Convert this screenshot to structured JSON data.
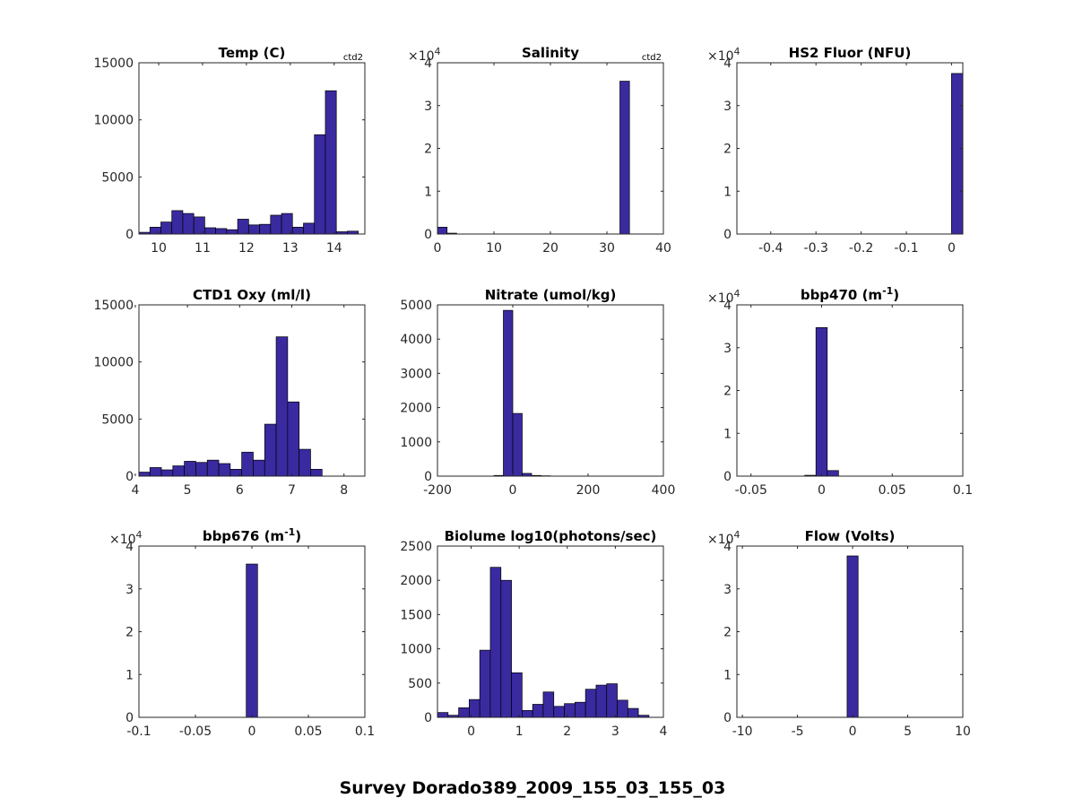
{
  "figure": {
    "suptitle": "Survey Dorado389_2009_155_03_155_03",
    "bar_color": "#3a2aa0"
  },
  "chart_data": [
    {
      "type": "bar",
      "title": "Temp (C)",
      "corner_label": "ctd2",
      "xlim": [
        9.55,
        14.7
      ],
      "ylim": [
        0,
        15000
      ],
      "xticks": [
        10,
        11,
        12,
        13,
        14
      ],
      "xtick_labels": [
        "10",
        "11",
        "12",
        "13",
        "14"
      ],
      "yticks": [
        0,
        5000,
        10000,
        15000
      ],
      "ytick_labels": [
        "0",
        "5000",
        "10000",
        "15000"
      ],
      "multiplier": null,
      "bin_edges": [
        9.55,
        9.8,
        10.05,
        10.3,
        10.55,
        10.8,
        11.05,
        11.3,
        11.55,
        11.8,
        12.05,
        12.3,
        12.55,
        12.8,
        13.05,
        13.3,
        13.55,
        13.8,
        14.05,
        14.3,
        14.55,
        14.7
      ],
      "values": [
        150,
        600,
        1050,
        2050,
        1800,
        1500,
        550,
        480,
        380,
        1300,
        800,
        850,
        1650,
        1800,
        600,
        950,
        8700,
        12550,
        200,
        250,
        0
      ]
    },
    {
      "type": "bar",
      "title": "Salinity",
      "corner_label": "ctd2",
      "xlim": [
        0,
        40
      ],
      "ylim": [
        0,
        4
      ],
      "xticks": [
        0,
        10,
        20,
        30,
        40
      ],
      "xtick_labels": [
        "0",
        "10",
        "20",
        "30",
        "40"
      ],
      "yticks": [
        0,
        1,
        2,
        3,
        4
      ],
      "ytick_labels": [
        "0",
        "1",
        "2",
        "3",
        "4"
      ],
      "multiplier": "×10",
      "multiplier_exp": "4",
      "bin_edges": [
        0,
        1.7,
        3.4,
        5.1,
        6.8,
        8.5,
        10.2,
        11.9,
        13.6,
        15.3,
        17.0,
        18.7,
        20.4,
        22.1,
        23.8,
        25.5,
        27.2,
        28.9,
        30.6,
        32.3,
        34.0
      ],
      "values": [
        0.16,
        0.02,
        0,
        0,
        0,
        0,
        0,
        0,
        0,
        0,
        0,
        0,
        0,
        0,
        0,
        0,
        0,
        0,
        0,
        3.57
      ]
    },
    {
      "type": "bar",
      "title": "HS2 Fluor (NFU)",
      "corner_label": "",
      "xlim": [
        -0.475,
        0.025
      ],
      "ylim": [
        0,
        4
      ],
      "xticks": [
        -0.4,
        -0.3,
        -0.2,
        -0.1,
        0
      ],
      "xtick_labels": [
        "-0.4",
        "-0.3",
        "-0.2",
        "-0.1",
        "0"
      ],
      "yticks": [
        0,
        1,
        2,
        3,
        4
      ],
      "ytick_labels": [
        "0",
        "1",
        "2",
        "3",
        "4"
      ],
      "multiplier": "×10",
      "multiplier_exp": "4",
      "bin_edges": [
        -0.475,
        -0.45,
        -0.425,
        -0.4,
        -0.375,
        -0.35,
        -0.325,
        -0.3,
        -0.275,
        -0.25,
        -0.225,
        -0.2,
        -0.175,
        -0.15,
        -0.125,
        -0.1,
        -0.075,
        -0.05,
        -0.025,
        0,
        0.025
      ],
      "values": [
        0,
        0,
        0,
        0,
        0,
        0,
        0,
        0,
        0,
        0,
        0,
        0,
        0,
        0,
        0,
        0,
        0,
        0,
        0,
        3.75
      ]
    },
    {
      "type": "bar",
      "title": "CTD1 Oxy (ml/l)",
      "corner_label": "",
      "xlim": [
        4.07,
        8.4
      ],
      "ylim": [
        0,
        15000
      ],
      "xticks": [
        4,
        5,
        6,
        7,
        8
      ],
      "xtick_labels": [
        "4",
        "5",
        "6",
        "7",
        "8"
      ],
      "yticks": [
        0,
        5000,
        10000,
        15000
      ],
      "ytick_labels": [
        "0",
        "5000",
        "10000",
        "15000"
      ],
      "multiplier": null,
      "bin_edges": [
        4.07,
        4.28,
        4.5,
        4.72,
        4.94,
        5.16,
        5.38,
        5.6,
        5.82,
        6.04,
        6.26,
        6.48,
        6.7,
        6.92,
        7.14,
        7.36,
        7.58
      ],
      "values": [
        350,
        750,
        550,
        900,
        1300,
        1200,
        1400,
        1100,
        600,
        2100,
        1400,
        4550,
        12200,
        6500,
        2350,
        600
      ]
    },
    {
      "type": "bar",
      "title": "Nitrate (umol/kg)",
      "corner_label": "",
      "xlim": [
        -200,
        400
      ],
      "ylim": [
        0,
        5000
      ],
      "xticks": [
        -200,
        0,
        200,
        400
      ],
      "xtick_labels": [
        "-200",
        "0",
        "200",
        "400"
      ],
      "yticks": [
        0,
        1000,
        2000,
        3000,
        4000,
        5000
      ],
      "ytick_labels": [
        "0",
        "1000",
        "2000",
        "3000",
        "4000",
        "5000"
      ],
      "multiplier": null,
      "bin_edges": [
        -200,
        -175,
        -150,
        -125,
        -100,
        -75,
        -50,
        -25,
        0,
        25,
        50,
        75,
        100,
        125,
        150,
        175,
        200,
        225,
        250,
        275,
        300,
        325,
        350,
        375,
        400
      ],
      "values": [
        0,
        0,
        0,
        0,
        0,
        0,
        20,
        4840,
        1830,
        80,
        20,
        10,
        0,
        0,
        0,
        0,
        0,
        0,
        0,
        0,
        0,
        0,
        0,
        0
      ]
    },
    {
      "type": "bar",
      "title": "bbp470 (m",
      "title_sup": "-1",
      "title_end": ")",
      "corner_label": "",
      "xlim": [
        -0.06,
        0.1
      ],
      "ylim": [
        0,
        4
      ],
      "xticks": [
        -0.05,
        0,
        0.05,
        0.1
      ],
      "xtick_labels": [
        "-0.05",
        "0",
        "0.05",
        "0.1"
      ],
      "yticks": [
        0,
        1,
        2,
        3,
        4
      ],
      "ytick_labels": [
        "0",
        "1",
        "2",
        "3",
        "4"
      ],
      "multiplier": "×10",
      "multiplier_exp": "4",
      "bin_edges": [
        -0.06,
        -0.052,
        -0.044,
        -0.036,
        -0.028,
        -0.02,
        -0.012,
        -0.004,
        0.004,
        0.012,
        0.02,
        0.028,
        0.036,
        0.044,
        0.052,
        0.06,
        0.068,
        0.076,
        0.084,
        0.092,
        0.1
      ],
      "values": [
        0,
        0,
        0,
        0,
        0,
        0,
        0.02,
        3.47,
        0.13,
        0,
        0,
        0,
        0,
        0,
        0,
        0,
        0,
        0,
        0,
        0
      ]
    },
    {
      "type": "bar",
      "title": "bbp676 (m",
      "title_sup": "-1",
      "title_end": ")",
      "corner_label": "",
      "xlim": [
        -0.1,
        0.1
      ],
      "ylim": [
        0,
        4
      ],
      "xticks": [
        -0.1,
        -0.05,
        0,
        0.05,
        0.1
      ],
      "xtick_labels": [
        "-0.1",
        "-0.05",
        "0",
        "0.05",
        "0.1"
      ],
      "yticks": [
        0,
        1,
        2,
        3,
        4
      ],
      "ytick_labels": [
        "0",
        "1",
        "2",
        "3",
        "4"
      ],
      "multiplier": "×10",
      "multiplier_exp": "4",
      "bin_edges": [
        -0.1,
        -0.09,
        -0.08,
        -0.07,
        -0.06,
        -0.05,
        -0.04,
        -0.03,
        -0.02,
        -0.01,
        -0.005,
        0.005,
        0.015,
        0.025,
        0.035,
        0.045,
        0.055,
        0.065,
        0.075,
        0.085,
        0.1
      ],
      "values": [
        0,
        0,
        0,
        0,
        0,
        0,
        0,
        0,
        0,
        0,
        3.58,
        0,
        0,
        0,
        0,
        0,
        0,
        0,
        0,
        0
      ]
    },
    {
      "type": "bar",
      "title": "Biolume log10(photons/sec)",
      "corner_label": "",
      "xlim": [
        -0.7,
        4.0
      ],
      "ylim": [
        0,
        2500
      ],
      "xticks": [
        0,
        1,
        2,
        3,
        4
      ],
      "xtick_labels": [
        "0",
        "1",
        "2",
        "3",
        "4"
      ],
      "yticks": [
        0,
        500,
        1000,
        1500,
        2000,
        2500
      ],
      "ytick_labels": [
        "0",
        "500",
        "1000",
        "1500",
        "2000",
        "2500"
      ],
      "multiplier": null,
      "bin_edges": [
        -0.7,
        -0.48,
        -0.26,
        -0.04,
        0.18,
        0.4,
        0.62,
        0.84,
        1.06,
        1.28,
        1.5,
        1.72,
        1.94,
        2.16,
        2.38,
        2.6,
        2.82,
        3.04,
        3.26,
        3.48,
        3.7
      ],
      "values": [
        70,
        30,
        140,
        260,
        980,
        2190,
        2000,
        650,
        100,
        190,
        370,
        160,
        200,
        220,
        410,
        470,
        490,
        250,
        130,
        30
      ]
    },
    {
      "type": "bar",
      "title": "Flow (Volts)",
      "corner_label": "",
      "xlim": [
        -10.5,
        10
      ],
      "ylim": [
        0,
        4
      ],
      "xticks": [
        -10,
        -5,
        0,
        5,
        10
      ],
      "xtick_labels": [
        "-10",
        "-5",
        "0",
        "5",
        "10"
      ],
      "yticks": [
        0,
        1,
        2,
        3,
        4
      ],
      "ytick_labels": [
        "0",
        "1",
        "2",
        "3",
        "4"
      ],
      "multiplier": "×10",
      "multiplier_exp": "4",
      "bin_edges": [
        -10.5,
        -9.5,
        -8.5,
        -7.5,
        -6.5,
        -5.5,
        -4.5,
        -3.5,
        -2.5,
        -1.5,
        -0.5,
        0.5,
        1.5,
        2.5,
        3.5,
        4.5,
        5.5,
        6.5,
        7.5,
        8.5,
        10
      ],
      "values": [
        0,
        0,
        0,
        0,
        0,
        0,
        0,
        0,
        0,
        0,
        3.77,
        0,
        0,
        0,
        0,
        0,
        0,
        0,
        0,
        0
      ]
    }
  ]
}
